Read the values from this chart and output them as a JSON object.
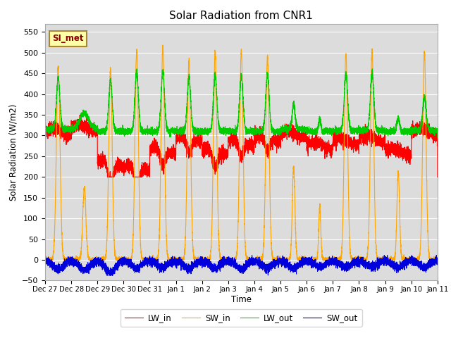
{
  "title": "Solar Radiation from CNR1",
  "xlabel": "Time",
  "ylabel": "Solar Radiation (W/m2)",
  "ylim": [
    -50,
    570
  ],
  "yticks": [
    -50,
    0,
    50,
    100,
    150,
    200,
    250,
    300,
    350,
    400,
    450,
    500,
    550
  ],
  "annotation": "SI_met",
  "bg_color": "#dcdcdc",
  "grid_color": "#ffffff",
  "colors": {
    "LW_in": "#ff0000",
    "SW_in": "#ffa500",
    "LW_out": "#00cc00",
    "SW_out": "#0000dd"
  },
  "line_width": 0.8,
  "xtick_labels": [
    "Dec 27",
    "Dec 28",
    "Dec 29",
    "Dec 30",
    "Dec 31",
    "Jan 1",
    "Jan 2",
    "Jan 3",
    "Jan 4",
    "Jan 5",
    "Jan 6",
    "Jan 7",
    "Jan 8",
    "Jan 9",
    "Jan 10",
    "Jan 11"
  ],
  "xtick_positions": [
    0,
    1,
    2,
    3,
    4,
    5,
    6,
    7,
    8,
    9,
    10,
    11,
    12,
    13,
    14,
    15
  ],
  "xlim": [
    0,
    15
  ],
  "n_days": 15,
  "ppd": 480,
  "SW_in_peaks": [
    468,
    175,
    460,
    505,
    515,
    483,
    505,
    505,
    490,
    225,
    130,
    500,
    500,
    213,
    500,
    0
  ],
  "SW_in_width": [
    0.07,
    0.06,
    0.065,
    0.065,
    0.065,
    0.065,
    0.065,
    0.065,
    0.065,
    0.05,
    0.04,
    0.065,
    0.065,
    0.05,
    0.065,
    0.065
  ],
  "LW_out_base": [
    315,
    318,
    310,
    310,
    310,
    310,
    310,
    310,
    310,
    315,
    310,
    312,
    312,
    310,
    312,
    315
  ],
  "LW_out_peaks": [
    440,
    355,
    433,
    455,
    455,
    440,
    447,
    445,
    450,
    378,
    340,
    450,
    452,
    342,
    393,
    350
  ],
  "LW_out_width": [
    0.065,
    0.06,
    0.065,
    0.065,
    0.065,
    0.065,
    0.065,
    0.065,
    0.065,
    0.055,
    0.04,
    0.065,
    0.065,
    0.05,
    0.065,
    0.065
  ],
  "LW_in_base": [
    310,
    318,
    234,
    224,
    265,
    295,
    263,
    285,
    295,
    303,
    276,
    285,
    292,
    261,
    308,
    332
  ],
  "LW_in_noise": 8,
  "SW_out_base": -3,
  "SW_out_noise": 5,
  "SW_out_neg_dip": [
    -20,
    -22,
    -28,
    -18,
    -15,
    -18,
    -18,
    -20,
    -18,
    -18,
    -15,
    -15,
    -15,
    -15,
    -15,
    -15
  ]
}
